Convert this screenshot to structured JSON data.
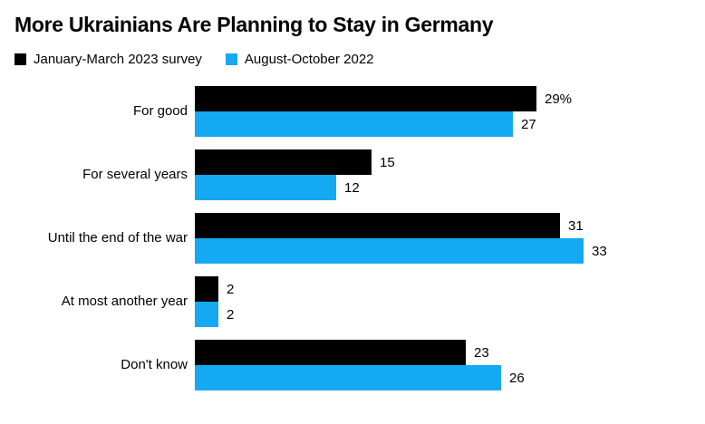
{
  "chart_data": {
    "type": "bar",
    "orientation": "horizontal",
    "title": "More Ukrainians Are Planning to Stay in Germany",
    "categories": [
      "For good",
      "For several years",
      "Until the end of the war",
      "At most another year",
      "Don't know"
    ],
    "series": [
      {
        "name": "January-March 2023 survey",
        "color": "#000000",
        "values": [
          29,
          15,
          31,
          2,
          23
        ],
        "value_labels": [
          "29%",
          "15",
          "31",
          "2",
          "23"
        ]
      },
      {
        "name": "August-October 2022",
        "color": "#14a9f0",
        "values": [
          27,
          12,
          33,
          2,
          26
        ],
        "value_labels": [
          "27",
          "12",
          "33",
          "2",
          "26"
        ]
      }
    ],
    "xlim": [
      0,
      33
    ],
    "grid": false,
    "legend_position": "top-left",
    "background_color": "#ffffff"
  }
}
